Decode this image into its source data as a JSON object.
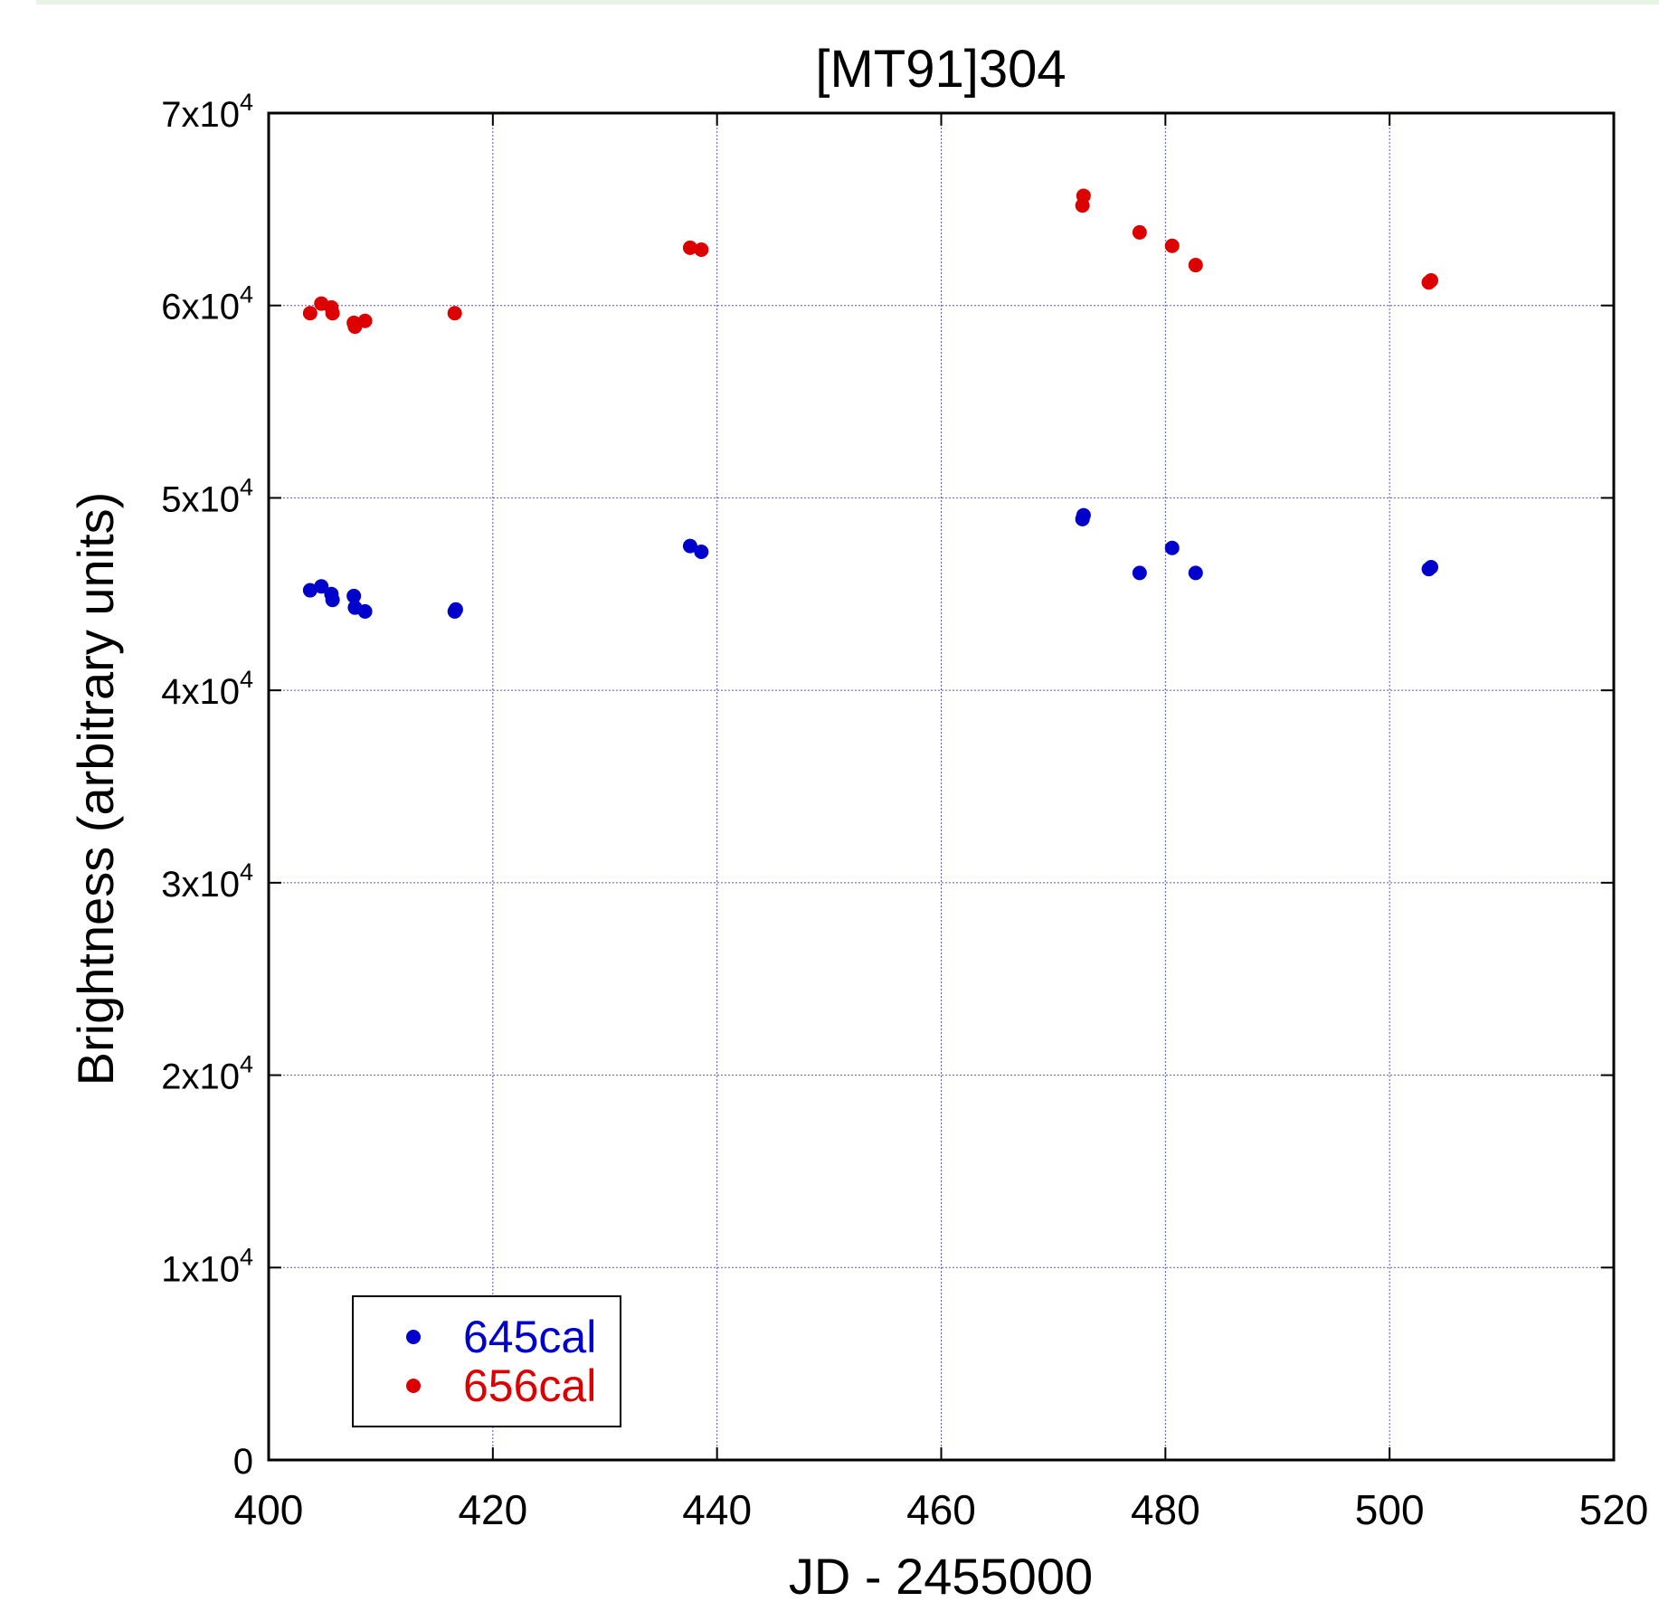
{
  "chart_data": {
    "type": "scatter",
    "title": "[MT91]304",
    "xlabel": "JD - 2455000",
    "ylabel": "Brightness (arbitrary units)",
    "xlim": [
      400,
      520
    ],
    "ylim": [
      0,
      70000
    ],
    "xticks": [
      400,
      420,
      440,
      460,
      480,
      500,
      520
    ],
    "yticks": [
      {
        "value": 0,
        "mantissa": "0",
        "exp": ""
      },
      {
        "value": 10000,
        "mantissa": "1x10",
        "exp": "4"
      },
      {
        "value": 20000,
        "mantissa": "2x10",
        "exp": "4"
      },
      {
        "value": 30000,
        "mantissa": "3x10",
        "exp": "4"
      },
      {
        "value": 40000,
        "mantissa": "4x10",
        "exp": "4"
      },
      {
        "value": 50000,
        "mantissa": "5x10",
        "exp": "4"
      },
      {
        "value": 60000,
        "mantissa": "6x10",
        "exp": "4"
      },
      {
        "value": 70000,
        "mantissa": "7x10",
        "exp": "4"
      }
    ],
    "grid": true,
    "legend_position": "bottom-left",
    "series": [
      {
        "name": "645cal",
        "color": "#0000cc",
        "points": [
          [
            403.7,
            45200
          ],
          [
            404.7,
            45400
          ],
          [
            405.6,
            45000
          ],
          [
            405.7,
            44700
          ],
          [
            407.6,
            44900
          ],
          [
            407.7,
            44300
          ],
          [
            408.6,
            44100
          ],
          [
            416.6,
            44100
          ],
          [
            416.7,
            44200
          ],
          [
            437.6,
            47500
          ],
          [
            438.6,
            47200
          ],
          [
            472.6,
            48900
          ],
          [
            472.7,
            49100
          ],
          [
            477.7,
            46100
          ],
          [
            480.6,
            47400
          ],
          [
            482.7,
            46100
          ],
          [
            503.5,
            46300
          ],
          [
            503.7,
            46400
          ]
        ]
      },
      {
        "name": "656cal",
        "color": "#dd0000",
        "points": [
          [
            403.7,
            59600
          ],
          [
            404.7,
            60100
          ],
          [
            405.6,
            59900
          ],
          [
            405.7,
            59600
          ],
          [
            407.6,
            59100
          ],
          [
            407.7,
            58900
          ],
          [
            408.6,
            59200
          ],
          [
            416.6,
            59600
          ],
          [
            437.6,
            63000
          ],
          [
            438.6,
            62900
          ],
          [
            472.6,
            65200
          ],
          [
            472.7,
            65700
          ],
          [
            477.7,
            63800
          ],
          [
            480.6,
            63100
          ],
          [
            482.7,
            62100
          ],
          [
            503.5,
            61200
          ],
          [
            503.7,
            61300
          ]
        ]
      }
    ]
  }
}
